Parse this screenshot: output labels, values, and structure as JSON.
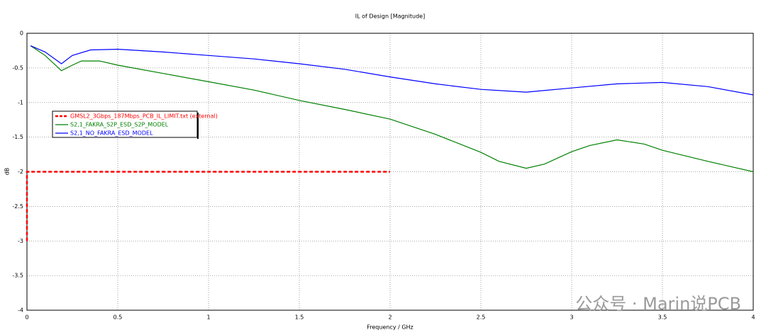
{
  "chart_data": {
    "type": "line",
    "title": "IL of Design [Magnitude]",
    "x_label": "Frequency / GHz",
    "y_label": "dB",
    "xlim": [
      0,
      4
    ],
    "ylim": [
      -4,
      0
    ],
    "xticks": [
      0,
      0.5,
      1,
      1.5,
      2,
      2.5,
      3,
      3.5,
      4
    ],
    "yticks": [
      0,
      -0.5,
      -1,
      -1.5,
      -2,
      -2.5,
      -3,
      -3.5,
      -4
    ],
    "grid": true,
    "legend": "upper left",
    "series": [
      {
        "name": "GMSL2_3Gbps_187Mbps_PCB_IL_LIMIT.txt (external)",
        "color": "#ff0000",
        "dashed": true,
        "x": [
          0,
          0,
          2
        ],
        "values": [
          -3.0,
          -2,
          -2
        ]
      },
      {
        "name": "S2,1_FAKRA_S2P_ESD_S2P_MODEL",
        "color": "#008000",
        "x": [
          0.02,
          0.1,
          0.19,
          0.25,
          0.3,
          0.4,
          0.5,
          0.75,
          1,
          1.25,
          1.5,
          1.75,
          2,
          2.25,
          2.5,
          2.6,
          2.75,
          2.85,
          3,
          3.1,
          3.25,
          3.4,
          3.5,
          3.75,
          4
        ],
        "values": [
          -0.18,
          -0.32,
          -0.54,
          -0.46,
          -0.4,
          -0.4,
          -0.46,
          -0.58,
          -0.7,
          -0.82,
          -0.97,
          -1.1,
          -1.24,
          -1.46,
          -1.72,
          -1.85,
          -1.95,
          -1.89,
          -1.71,
          -1.62,
          -1.54,
          -1.6,
          -1.69,
          -1.85,
          -2.0
        ]
      },
      {
        "name": "S2,1_NO_FAKRA_ESD_MODEL",
        "color": "#0000ff",
        "x": [
          0.02,
          0.1,
          0.19,
          0.25,
          0.35,
          0.5,
          0.75,
          1,
          1.25,
          1.5,
          1.75,
          2,
          2.25,
          2.5,
          2.75,
          3,
          3.25,
          3.5,
          3.75,
          4
        ],
        "values": [
          -0.18,
          -0.27,
          -0.44,
          -0.32,
          -0.24,
          -0.23,
          -0.27,
          -0.32,
          -0.37,
          -0.44,
          -0.52,
          -0.63,
          -0.73,
          -0.81,
          -0.85,
          -0.79,
          -0.73,
          -0.71,
          -0.77,
          -0.89
        ]
      }
    ]
  },
  "watermark": "公众号 · Marin说PCB"
}
